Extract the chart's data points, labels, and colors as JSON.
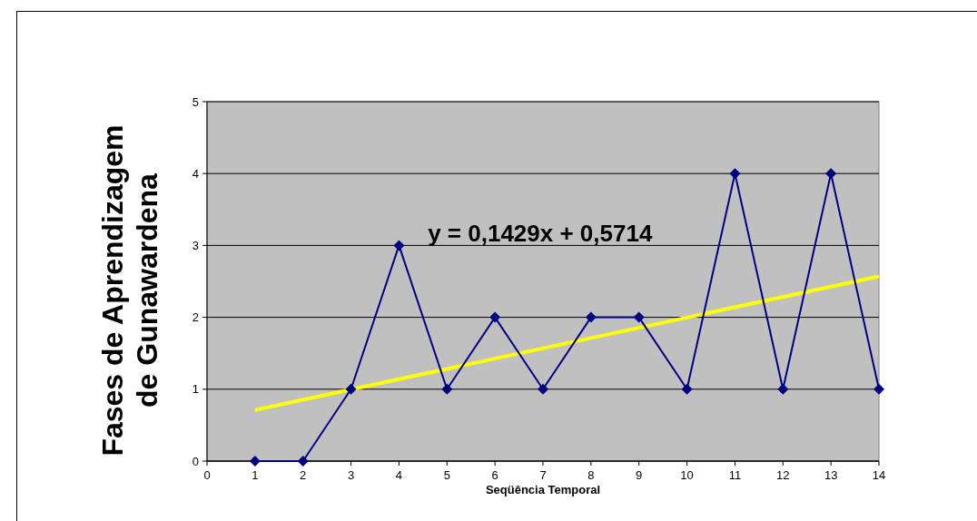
{
  "chart_data": {
    "type": "line",
    "xlabel": "Seqüência Temporal",
    "ylabel": "Fases de Aprendizagem\nde Gunawardena",
    "x": [
      1,
      2,
      3,
      4,
      5,
      6,
      7,
      8,
      9,
      10,
      11,
      12,
      13,
      14
    ],
    "series": [
      {
        "color": "#000080",
        "values": [
          0,
          0,
          1,
          3,
          1,
          2,
          1,
          2,
          2,
          1,
          4,
          1,
          4,
          1
        ],
        "marker": "diamond"
      },
      {
        "type": "line",
        "color": "#ffff00",
        "x": [
          1,
          14
        ],
        "values": [
          0.71,
          2.57
        ],
        "marker": "none"
      }
    ],
    "xlim": [
      0,
      14
    ],
    "xticks": [
      0,
      1,
      2,
      3,
      4,
      5,
      6,
      7,
      8,
      9,
      10,
      11,
      12,
      13,
      14
    ],
    "ylim": [
      0,
      5
    ],
    "yticks": [
      0,
      1,
      2,
      3,
      4,
      5
    ],
    "grid": "y",
    "annotations": [
      "y = 0,1429x + 0,5714"
    ]
  }
}
